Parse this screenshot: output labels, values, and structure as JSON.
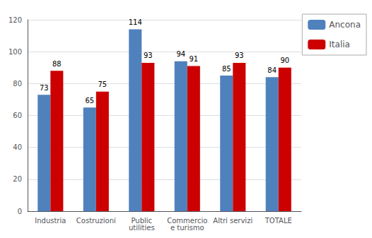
{
  "chart_data": {
    "type": "bar",
    "categories": [
      "Industria",
      "Costruzioni",
      "Public\nutilities",
      "Commercio\ne turismo",
      "Altri servizi",
      "TOTALE"
    ],
    "series": [
      {
        "name": "Ancona",
        "color": "#4f81bd",
        "values": [
          73,
          65,
          114,
          94,
          85,
          84
        ]
      },
      {
        "name": "Italia",
        "color": "#cc0000",
        "values": [
          88,
          75,
          93,
          91,
          93,
          90
        ]
      }
    ],
    "ylim": [
      0,
      120
    ],
    "yticks": [
      0,
      20,
      40,
      60,
      80,
      100,
      120
    ],
    "grid": true,
    "legend": "upper right",
    "data_labels": true
  }
}
